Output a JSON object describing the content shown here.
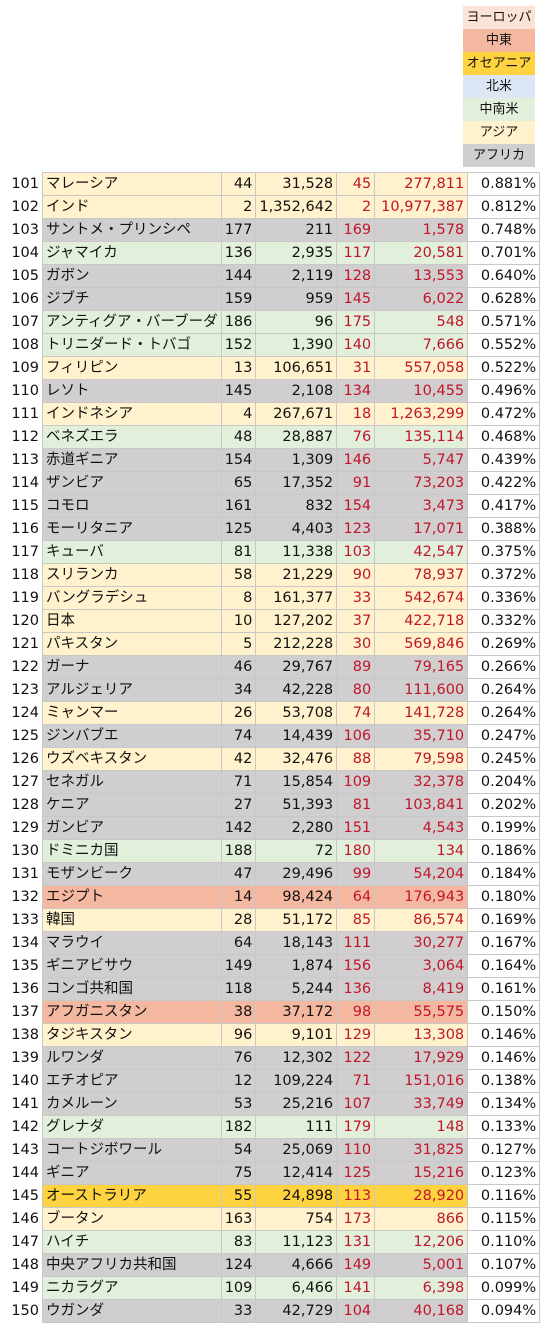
{
  "legend": [
    {
      "label": "ヨーロッパ",
      "color": "#fbe3d6"
    },
    {
      "label": "中東",
      "color": "#f4b7a0"
    },
    {
      "label": "オセアニア",
      "color": "#ffd23f"
    },
    {
      "label": "北米",
      "color": "#dde6f4"
    },
    {
      "label": "中南米",
      "color": "#e2efda"
    },
    {
      "label": "アジア",
      "color": "#fff2cc"
    },
    {
      "label": "アフリカ",
      "color": "#d0cece"
    }
  ],
  "rows": [
    {
      "n": "101",
      "name": "マレーシア",
      "r1": "44",
      "v1": "31,528",
      "r2": "45",
      "v2": "277,811",
      "pct": "0.881%",
      "region": "アジア"
    },
    {
      "n": "102",
      "name": "インド",
      "r1": "2",
      "v1": "1,352,642",
      "r2": "2",
      "v2": "10,977,387",
      "pct": "0.812%",
      "region": "アジア"
    },
    {
      "n": "103",
      "name": "サントメ・プリンシペ",
      "r1": "177",
      "v1": "211",
      "r2": "169",
      "v2": "1,578",
      "pct": "0.748%",
      "region": "アフリカ"
    },
    {
      "n": "104",
      "name": "ジャマイカ",
      "r1": "136",
      "v1": "2,935",
      "r2": "117",
      "v2": "20,581",
      "pct": "0.701%",
      "region": "中南米"
    },
    {
      "n": "105",
      "name": "ガボン",
      "r1": "144",
      "v1": "2,119",
      "r2": "128",
      "v2": "13,553",
      "pct": "0.640%",
      "region": "アフリカ"
    },
    {
      "n": "106",
      "name": "ジブチ",
      "r1": "159",
      "v1": "959",
      "r2": "145",
      "v2": "6,022",
      "pct": "0.628%",
      "region": "アフリカ"
    },
    {
      "n": "107",
      "name": "アンティグア・バーブーダ",
      "r1": "186",
      "v1": "96",
      "r2": "175",
      "v2": "548",
      "pct": "0.571%",
      "region": "中南米"
    },
    {
      "n": "108",
      "name": "トリニダード・トバゴ",
      "r1": "152",
      "v1": "1,390",
      "r2": "140",
      "v2": "7,666",
      "pct": "0.552%",
      "region": "中南米"
    },
    {
      "n": "109",
      "name": "フィリピン",
      "r1": "13",
      "v1": "106,651",
      "r2": "31",
      "v2": "557,058",
      "pct": "0.522%",
      "region": "アジア"
    },
    {
      "n": "110",
      "name": "レソト",
      "r1": "145",
      "v1": "2,108",
      "r2": "134",
      "v2": "10,455",
      "pct": "0.496%",
      "region": "アフリカ"
    },
    {
      "n": "111",
      "name": "インドネシア",
      "r1": "4",
      "v1": "267,671",
      "r2": "18",
      "v2": "1,263,299",
      "pct": "0.472%",
      "region": "アジア"
    },
    {
      "n": "112",
      "name": "ベネズエラ",
      "r1": "48",
      "v1": "28,887",
      "r2": "76",
      "v2": "135,114",
      "pct": "0.468%",
      "region": "中南米"
    },
    {
      "n": "113",
      "name": "赤道ギニア",
      "r1": "154",
      "v1": "1,309",
      "r2": "146",
      "v2": "5,747",
      "pct": "0.439%",
      "region": "アフリカ"
    },
    {
      "n": "114",
      "name": "ザンビア",
      "r1": "65",
      "v1": "17,352",
      "r2": "91",
      "v2": "73,203",
      "pct": "0.422%",
      "region": "アフリカ"
    },
    {
      "n": "115",
      "name": "コモロ",
      "r1": "161",
      "v1": "832",
      "r2": "154",
      "v2": "3,473",
      "pct": "0.417%",
      "region": "アフリカ"
    },
    {
      "n": "116",
      "name": "モーリタニア",
      "r1": "125",
      "v1": "4,403",
      "r2": "123",
      "v2": "17,071",
      "pct": "0.388%",
      "region": "アフリカ"
    },
    {
      "n": "117",
      "name": "キューバ",
      "r1": "81",
      "v1": "11,338",
      "r2": "103",
      "v2": "42,547",
      "pct": "0.375%",
      "region": "中南米"
    },
    {
      "n": "118",
      "name": "スリランカ",
      "r1": "58",
      "v1": "21,229",
      "r2": "90",
      "v2": "78,937",
      "pct": "0.372%",
      "region": "アジア"
    },
    {
      "n": "119",
      "name": "バングラデシュ",
      "r1": "8",
      "v1": "161,377",
      "r2": "33",
      "v2": "542,674",
      "pct": "0.336%",
      "region": "アジア"
    },
    {
      "n": "120",
      "name": "日本",
      "r1": "10",
      "v1": "127,202",
      "r2": "37",
      "v2": "422,718",
      "pct": "0.332%",
      "region": "アジア"
    },
    {
      "n": "121",
      "name": "パキスタン",
      "r1": "5",
      "v1": "212,228",
      "r2": "30",
      "v2": "569,846",
      "pct": "0.269%",
      "region": "アジア"
    },
    {
      "n": "122",
      "name": "ガーナ",
      "r1": "46",
      "v1": "29,767",
      "r2": "89",
      "v2": "79,165",
      "pct": "0.266%",
      "region": "アフリカ"
    },
    {
      "n": "123",
      "name": "アルジェリア",
      "r1": "34",
      "v1": "42,228",
      "r2": "80",
      "v2": "111,600",
      "pct": "0.264%",
      "region": "アフリカ"
    },
    {
      "n": "124",
      "name": "ミャンマー",
      "r1": "26",
      "v1": "53,708",
      "r2": "74",
      "v2": "141,728",
      "pct": "0.264%",
      "region": "アジア"
    },
    {
      "n": "125",
      "name": "ジンバブエ",
      "r1": "74",
      "v1": "14,439",
      "r2": "106",
      "v2": "35,710",
      "pct": "0.247%",
      "region": "アフリカ"
    },
    {
      "n": "126",
      "name": "ウズベキスタン",
      "r1": "42",
      "v1": "32,476",
      "r2": "88",
      "v2": "79,598",
      "pct": "0.245%",
      "region": "アジア"
    },
    {
      "n": "127",
      "name": "セネガル",
      "r1": "71",
      "v1": "15,854",
      "r2": "109",
      "v2": "32,378",
      "pct": "0.204%",
      "region": "アフリカ"
    },
    {
      "n": "128",
      "name": "ケニア",
      "r1": "27",
      "v1": "51,393",
      "r2": "81",
      "v2": "103,841",
      "pct": "0.202%",
      "region": "アフリカ"
    },
    {
      "n": "129",
      "name": "ガンビア",
      "r1": "142",
      "v1": "2,280",
      "r2": "151",
      "v2": "4,543",
      "pct": "0.199%",
      "region": "アフリカ"
    },
    {
      "n": "130",
      "name": "ドミニカ国",
      "r1": "188",
      "v1": "72",
      "r2": "180",
      "v2": "134",
      "pct": "0.186%",
      "region": "中南米"
    },
    {
      "n": "131",
      "name": "モザンビーク",
      "r1": "47",
      "v1": "29,496",
      "r2": "99",
      "v2": "54,204",
      "pct": "0.184%",
      "region": "アフリカ"
    },
    {
      "n": "132",
      "name": "エジプト",
      "r1": "14",
      "v1": "98,424",
      "r2": "64",
      "v2": "176,943",
      "pct": "0.180%",
      "region": "中東"
    },
    {
      "n": "133",
      "name": "韓国",
      "r1": "28",
      "v1": "51,172",
      "r2": "85",
      "v2": "86,574",
      "pct": "0.169%",
      "region": "アジア"
    },
    {
      "n": "134",
      "name": "マラウイ",
      "r1": "64",
      "v1": "18,143",
      "r2": "111",
      "v2": "30,277",
      "pct": "0.167%",
      "region": "アフリカ"
    },
    {
      "n": "135",
      "name": "ギニアビサウ",
      "r1": "149",
      "v1": "1,874",
      "r2": "156",
      "v2": "3,064",
      "pct": "0.164%",
      "region": "アフリカ"
    },
    {
      "n": "136",
      "name": "コンゴ共和国",
      "r1": "118",
      "v1": "5,244",
      "r2": "136",
      "v2": "8,419",
      "pct": "0.161%",
      "region": "アフリカ"
    },
    {
      "n": "137",
      "name": "アフガニスタン",
      "r1": "38",
      "v1": "37,172",
      "r2": "98",
      "v2": "55,575",
      "pct": "0.150%",
      "region": "中東"
    },
    {
      "n": "138",
      "name": "タジキスタン",
      "r1": "96",
      "v1": "9,101",
      "r2": "129",
      "v2": "13,308",
      "pct": "0.146%",
      "region": "アジア"
    },
    {
      "n": "139",
      "name": "ルワンダ",
      "r1": "76",
      "v1": "12,302",
      "r2": "122",
      "v2": "17,929",
      "pct": "0.146%",
      "region": "アフリカ"
    },
    {
      "n": "140",
      "name": "エチオピア",
      "r1": "12",
      "v1": "109,224",
      "r2": "71",
      "v2": "151,016",
      "pct": "0.138%",
      "region": "アフリカ"
    },
    {
      "n": "141",
      "name": "カメルーン",
      "r1": "53",
      "v1": "25,216",
      "r2": "107",
      "v2": "33,749",
      "pct": "0.134%",
      "region": "アフリカ"
    },
    {
      "n": "142",
      "name": "グレナダ",
      "r1": "182",
      "v1": "111",
      "r2": "179",
      "v2": "148",
      "pct": "0.133%",
      "region": "中南米"
    },
    {
      "n": "143",
      "name": "コートジボワール",
      "r1": "54",
      "v1": "25,069",
      "r2": "110",
      "v2": "31,825",
      "pct": "0.127%",
      "region": "アフリカ"
    },
    {
      "n": "144",
      "name": "ギニア",
      "r1": "75",
      "v1": "12,414",
      "r2": "125",
      "v2": "15,216",
      "pct": "0.123%",
      "region": "アフリカ"
    },
    {
      "n": "145",
      "name": "オーストラリア",
      "r1": "55",
      "v1": "24,898",
      "r2": "113",
      "v2": "28,920",
      "pct": "0.116%",
      "region": "オセアニア"
    },
    {
      "n": "146",
      "name": "ブータン",
      "r1": "163",
      "v1": "754",
      "r2": "173",
      "v2": "866",
      "pct": "0.115%",
      "region": "アジア"
    },
    {
      "n": "147",
      "name": "ハイチ",
      "r1": "83",
      "v1": "11,123",
      "r2": "131",
      "v2": "12,206",
      "pct": "0.110%",
      "region": "中南米"
    },
    {
      "n": "148",
      "name": "中央アフリカ共和国",
      "r1": "124",
      "v1": "4,666",
      "r2": "149",
      "v2": "5,001",
      "pct": "0.107%",
      "region": "アフリカ"
    },
    {
      "n": "149",
      "name": "ニカラグア",
      "r1": "109",
      "v1": "6,466",
      "r2": "141",
      "v2": "6,398",
      "pct": "0.099%",
      "region": "中南米"
    },
    {
      "n": "150",
      "name": "ウガンダ",
      "r1": "33",
      "v1": "42,729",
      "r2": "104",
      "v2": "40,168",
      "pct": "0.094%",
      "region": "アフリカ"
    }
  ]
}
